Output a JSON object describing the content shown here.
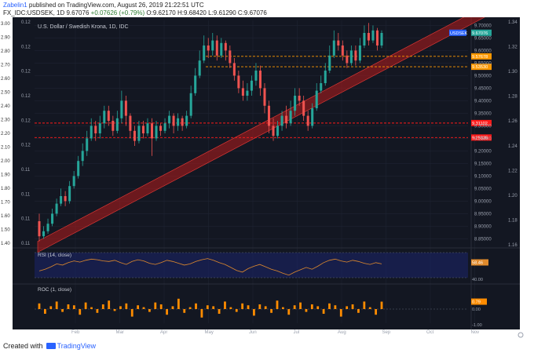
{
  "header": {
    "username": "Zabelin1",
    "published_text": "published on TradingView.com, August 26, 2019 21:22:51 UTC",
    "symbol": "FX_IDC:USDSEK, 1D",
    "last_price": "9.67076",
    "change": "+0.07626 (+0.79%)",
    "ohlc": "O:9.62170 H:9.68420 L:9.61290 C:9.67076"
  },
  "footer": {
    "created_with": "Created with",
    "brand": "TradingView"
  },
  "colors": {
    "background": "#131722",
    "grid": "#1f2433",
    "up": "#26a69a",
    "down": "#ef5350",
    "channel": "#b71c1c",
    "support_orange": "#ff9800",
    "support_red": "#ff1a1a",
    "rsi_line": "#e08a2c",
    "roc_bar": "#ff8c00",
    "rsi_band": "#1a2366"
  },
  "chart_data": {
    "type": "candlestick",
    "title": "U.S. Dollar / Swedish Krona, 1D, IDC",
    "symbol_badge": "USDSEK",
    "price_badge": "9.67076",
    "x_ticks": [
      "Feb",
      "Mar",
      "Apr",
      "May",
      "Jun",
      "Jul",
      "Aug",
      "Sep",
      "Oct",
      "Nov"
    ],
    "y_ticks_right": [
      "9.70000",
      "9.65000",
      "9.60000",
      "9.55000",
      "9.50000",
      "9.45000",
      "9.40000",
      "9.35000",
      "9.30000",
      "9.25000",
      "9.20000",
      "9.15000",
      "9.10000",
      "9.05000",
      "9.00000",
      "8.95000",
      "8.90000",
      "8.85000"
    ],
    "y_ticks_right_outer": [
      "1.34",
      "1.32",
      "1.30",
      "1.28",
      "1.26",
      "1.24",
      "1.22",
      "1.20",
      "1.18",
      "1.16"
    ],
    "y_ticks_left_outer": [
      "3.00",
      "2.90",
      "2.80",
      "2.70",
      "2.60",
      "2.50",
      "2.40",
      "2.30",
      "2.20",
      "2.10",
      "2.00",
      "1.90",
      "1.80",
      "1.70",
      "1.60",
      "1.50",
      "1.40"
    ],
    "y_ticks_left_inner": [
      "0.12",
      "0.12",
      "0.12",
      "0.12",
      "0.12",
      "0.12",
      "0.11",
      "0.11",
      "0.11",
      "0.11"
    ],
    "ylim": [
      8.82,
      9.72
    ],
    "levels": [
      {
        "value": 9.57678,
        "label": "9.57678",
        "color": "orange"
      },
      {
        "value": 9.5353,
        "label": "9.53530",
        "color": "orange"
      },
      {
        "value": 9.31102,
        "label": "9.31102",
        "color": "red"
      },
      {
        "value": 9.25335,
        "label": "9.25335",
        "color": "red"
      }
    ],
    "rsi": {
      "label": "RSI (14, close)",
      "value_badge": "58.46",
      "tick": "40.00",
      "values": [
        44,
        47,
        51,
        56,
        54,
        58,
        61,
        59,
        62,
        64,
        63,
        61,
        60,
        62,
        58,
        55,
        60,
        63,
        61,
        57,
        55,
        58,
        62,
        60,
        57,
        54,
        56,
        60,
        63,
        65,
        62,
        58,
        55,
        50,
        45,
        42,
        48,
        52,
        55,
        51,
        47,
        44,
        40,
        37,
        42,
        46,
        50,
        47,
        52,
        58,
        62,
        64,
        61,
        59,
        62,
        60,
        57,
        55,
        58,
        56
      ]
    },
    "roc": {
      "label": "ROC (1, close)",
      "value_badge": "0.79",
      "tick_zero": "0.00",
      "tick_bottom": "-1.00",
      "values": [
        0.6,
        -0.5,
        0.3,
        0.8,
        -0.3,
        0.5,
        0.4,
        -0.6,
        0.7,
        0.2,
        -0.4,
        0.5,
        0.9,
        -0.2,
        0.3,
        0.6,
        -0.8,
        0.4,
        0.2,
        -0.3,
        0.7,
        0.5,
        -0.6,
        0.3,
        1.1,
        -0.4,
        0.2,
        0.6,
        -0.9,
        0.4,
        0.3,
        -0.5,
        0.8,
        0.2,
        -0.3,
        0.6,
        0.4,
        -0.7,
        0.5,
        0.3,
        -0.4,
        0.9,
        0.2,
        -0.6,
        0.4,
        0.7,
        -0.3,
        0.5,
        0.3,
        -0.5,
        0.6,
        0.4,
        -0.8,
        0.3,
        0.5,
        -0.4,
        0.8,
        0.2,
        -0.6,
        0.79
      ]
    },
    "candles": [
      [
        8.92,
        8.86,
        8.95,
        8.84
      ],
      [
        8.86,
        8.88,
        8.9,
        8.85
      ],
      [
        8.88,
        8.91,
        8.93,
        8.87
      ],
      [
        8.91,
        8.95,
        8.97,
        8.9
      ],
      [
        8.95,
        8.99,
        9.01,
        8.94
      ],
      [
        8.99,
        9.02,
        9.05,
        8.98
      ],
      [
        9.02,
        9.0,
        9.04,
        8.98
      ],
      [
        9.0,
        9.06,
        9.08,
        8.99
      ],
      [
        9.06,
        9.1,
        9.12,
        9.05
      ],
      [
        9.1,
        9.16,
        9.18,
        9.09
      ],
      [
        9.16,
        9.2,
        9.23,
        9.14
      ],
      [
        9.2,
        9.25,
        9.28,
        9.18
      ],
      [
        9.25,
        9.3,
        9.33,
        9.24
      ],
      [
        9.3,
        9.27,
        9.32,
        9.24
      ],
      [
        9.27,
        9.31,
        9.34,
        9.25
      ],
      [
        9.31,
        9.36,
        9.38,
        9.29
      ],
      [
        9.36,
        9.32,
        9.38,
        9.3
      ],
      [
        9.32,
        9.28,
        9.34,
        9.26
      ],
      [
        9.28,
        9.33,
        9.36,
        9.27
      ],
      [
        9.33,
        9.4,
        9.44,
        9.31
      ],
      [
        9.4,
        9.34,
        9.42,
        9.3
      ],
      [
        9.34,
        9.28,
        9.35,
        9.25
      ],
      [
        9.28,
        9.24,
        9.3,
        9.22
      ],
      [
        9.24,
        9.3,
        9.32,
        9.23
      ],
      [
        9.3,
        9.27,
        9.32,
        9.25
      ],
      [
        9.27,
        9.31,
        9.33,
        9.26
      ],
      [
        9.31,
        9.25,
        9.33,
        9.18
      ],
      [
        9.25,
        9.3,
        9.32,
        9.24
      ],
      [
        9.3,
        9.28,
        9.31,
        9.26
      ],
      [
        9.28,
        9.31,
        9.33,
        9.27
      ],
      [
        9.31,
        9.34,
        9.36,
        9.29
      ],
      [
        9.34,
        9.3,
        9.35,
        9.27
      ],
      [
        9.3,
        9.33,
        9.35,
        9.28
      ],
      [
        9.33,
        9.3,
        9.34,
        9.28
      ],
      [
        9.3,
        9.34,
        9.36,
        9.29
      ],
      [
        9.34,
        9.43,
        9.46,
        9.33
      ],
      [
        9.43,
        9.5,
        9.53,
        9.42
      ],
      [
        9.5,
        9.56,
        9.6,
        9.49
      ],
      [
        9.56,
        9.62,
        9.66,
        9.55
      ],
      [
        9.62,
        9.6,
        9.65,
        9.57
      ],
      [
        9.6,
        9.64,
        9.67,
        9.58
      ],
      [
        9.64,
        9.58,
        9.66,
        9.56
      ],
      [
        9.58,
        9.63,
        9.65,
        9.57
      ],
      [
        9.63,
        9.6,
        9.64,
        9.56
      ],
      [
        9.6,
        9.55,
        9.62,
        9.53
      ],
      [
        9.55,
        9.5,
        9.57,
        9.48
      ],
      [
        9.5,
        9.45,
        9.52,
        9.43
      ],
      [
        9.45,
        9.42,
        9.48,
        9.4
      ],
      [
        9.42,
        9.44,
        9.47,
        9.4
      ],
      [
        9.44,
        9.48,
        9.5,
        9.42
      ],
      [
        9.48,
        9.52,
        9.55,
        9.46
      ],
      [
        9.52,
        9.45,
        9.54,
        9.42
      ],
      [
        9.45,
        9.38,
        9.47,
        9.35
      ],
      [
        9.38,
        9.3,
        9.4,
        9.27
      ],
      [
        9.3,
        9.26,
        9.33,
        9.24
      ],
      [
        9.26,
        9.3,
        9.32,
        9.25
      ],
      [
        9.3,
        9.34,
        9.36,
        9.28
      ],
      [
        9.34,
        9.31,
        9.38,
        9.29
      ],
      [
        9.31,
        9.36,
        9.4,
        9.3
      ],
      [
        9.36,
        9.42,
        9.45,
        9.34
      ]
    ],
    "candles_tail": [
      [
        9.42,
        9.4,
        9.45,
        9.38
      ],
      [
        9.4,
        9.34,
        9.42,
        9.32
      ],
      [
        9.34,
        9.3,
        9.36,
        9.28
      ],
      [
        9.3,
        9.37,
        9.39,
        9.29
      ],
      [
        9.37,
        9.44,
        9.47,
        9.36
      ],
      [
        9.44,
        9.47,
        9.5,
        9.43
      ],
      [
        9.47,
        9.52,
        9.55,
        9.46
      ],
      [
        9.52,
        9.58,
        9.62,
        9.51
      ],
      [
        9.58,
        9.64,
        9.68,
        9.57
      ],
      [
        9.64,
        9.62,
        9.67,
        9.6
      ],
      [
        9.62,
        9.58,
        9.64,
        9.56
      ],
      [
        9.58,
        9.55,
        9.6,
        9.53
      ],
      [
        9.55,
        9.6,
        9.62,
        9.54
      ],
      [
        9.6,
        9.56,
        9.62,
        9.54
      ],
      [
        9.56,
        9.62,
        9.65,
        9.55
      ],
      [
        9.62,
        9.67,
        9.7,
        9.61
      ],
      [
        9.67,
        9.64,
        9.71,
        9.62
      ],
      [
        9.64,
        9.68,
        9.7,
        9.63
      ],
      [
        9.68,
        9.62,
        9.69,
        9.6
      ],
      [
        9.62,
        9.67,
        9.68,
        9.61
      ]
    ]
  }
}
